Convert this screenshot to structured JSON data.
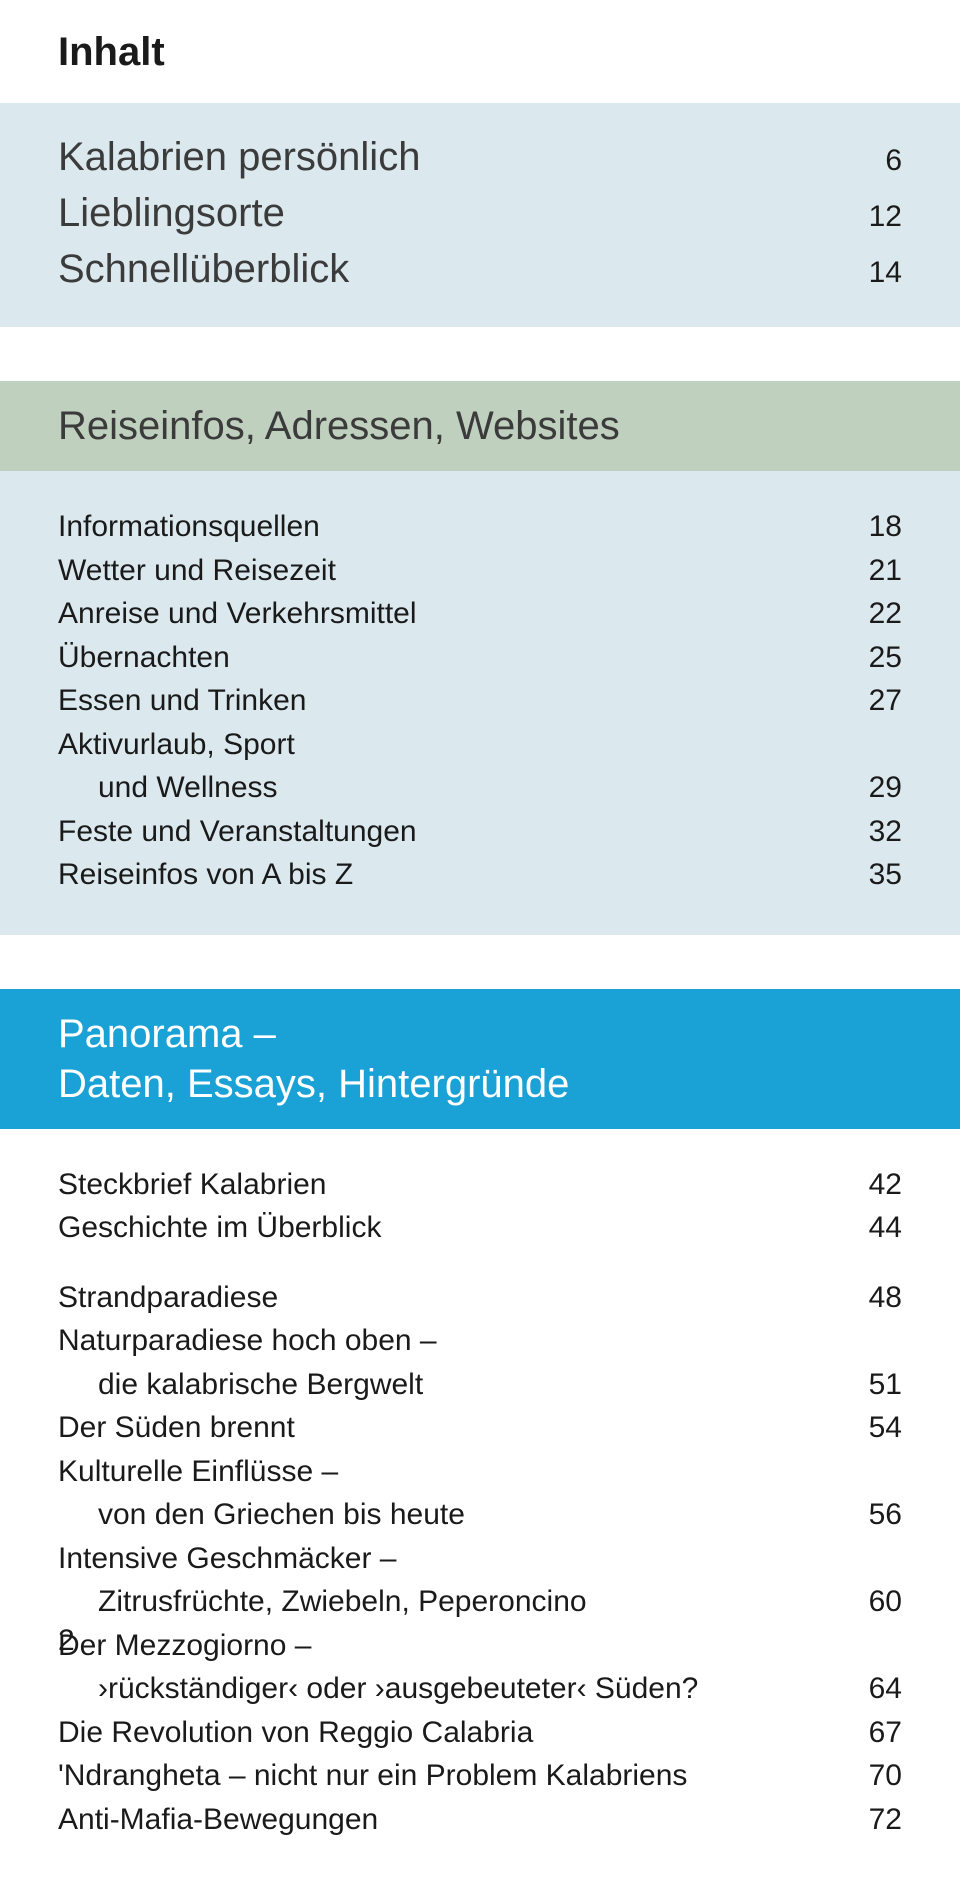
{
  "page_title": "Inhalt",
  "intro": {
    "rows": [
      {
        "label": "Kalabrien persönlich",
        "page": "6"
      },
      {
        "label": "Lieblingsorte",
        "page": "12"
      },
      {
        "label": "Schnellüberblick",
        "page": "14"
      }
    ]
  },
  "reiseinfos": {
    "heading": "Reiseinfos, Adressen, Websites",
    "rows": [
      {
        "label": "Informationsquellen",
        "page": "18"
      },
      {
        "label": "Wetter und Reisezeit",
        "page": "21"
      },
      {
        "label": "Anreise und Verkehrsmittel",
        "page": "22"
      },
      {
        "label": "Übernachten",
        "page": "25"
      },
      {
        "label": "Essen und Trinken",
        "page": "27"
      },
      {
        "label": "Aktivurlaub, Sport",
        "page": ""
      },
      {
        "label": "und Wellness",
        "page": "29",
        "indent": true
      },
      {
        "label": "Feste und Veranstaltungen",
        "page": "32"
      },
      {
        "label": "Reiseinfos von A bis Z",
        "page": "35"
      }
    ]
  },
  "panorama": {
    "heading_line1": "Panorama –",
    "heading_line2": "Daten, Essays, Hintergründe",
    "rows": [
      {
        "label": "Steckbrief Kalabrien",
        "page": "42"
      },
      {
        "label": "Geschichte im Überblick",
        "page": "44"
      },
      {
        "label": "Strandparadiese",
        "page": "48",
        "gap": true
      },
      {
        "label": "Naturparadiese hoch oben –",
        "page": ""
      },
      {
        "label": "die kalabrische Bergwelt",
        "page": "51",
        "indent": true
      },
      {
        "label": "Der Süden brennt",
        "page": "54"
      },
      {
        "label": "Kulturelle Einflüsse –",
        "page": ""
      },
      {
        "label": "von den Griechen bis heute",
        "page": "56",
        "indent": true
      },
      {
        "label": "Intensive Geschmäcker –",
        "page": ""
      },
      {
        "label": "Zitrusfrüchte, Zwiebeln, Peperoncino",
        "page": "60",
        "indent": true
      },
      {
        "label": "Der Mezzogiorno –",
        "page": ""
      },
      {
        "label": "›rückständiger‹ oder ›ausgebeuteter‹ Süden?",
        "page": "64",
        "indent": true
      },
      {
        "label": "Die Revolution von Reggio Calabria",
        "page": "67"
      },
      {
        "label": "'Ndrangheta – nicht nur ein Problem Kalabriens",
        "page": "70"
      },
      {
        "label": "Anti-Mafia-Bewegungen",
        "page": "72"
      }
    ]
  },
  "page_number": "2",
  "colors": {
    "band_blue": "#dbe9ef",
    "band_green": "#bfd0be",
    "band_cyan": "#1aa1d6",
    "text_dark": "#1a1a1a",
    "text_medium": "#3b3b3b"
  }
}
